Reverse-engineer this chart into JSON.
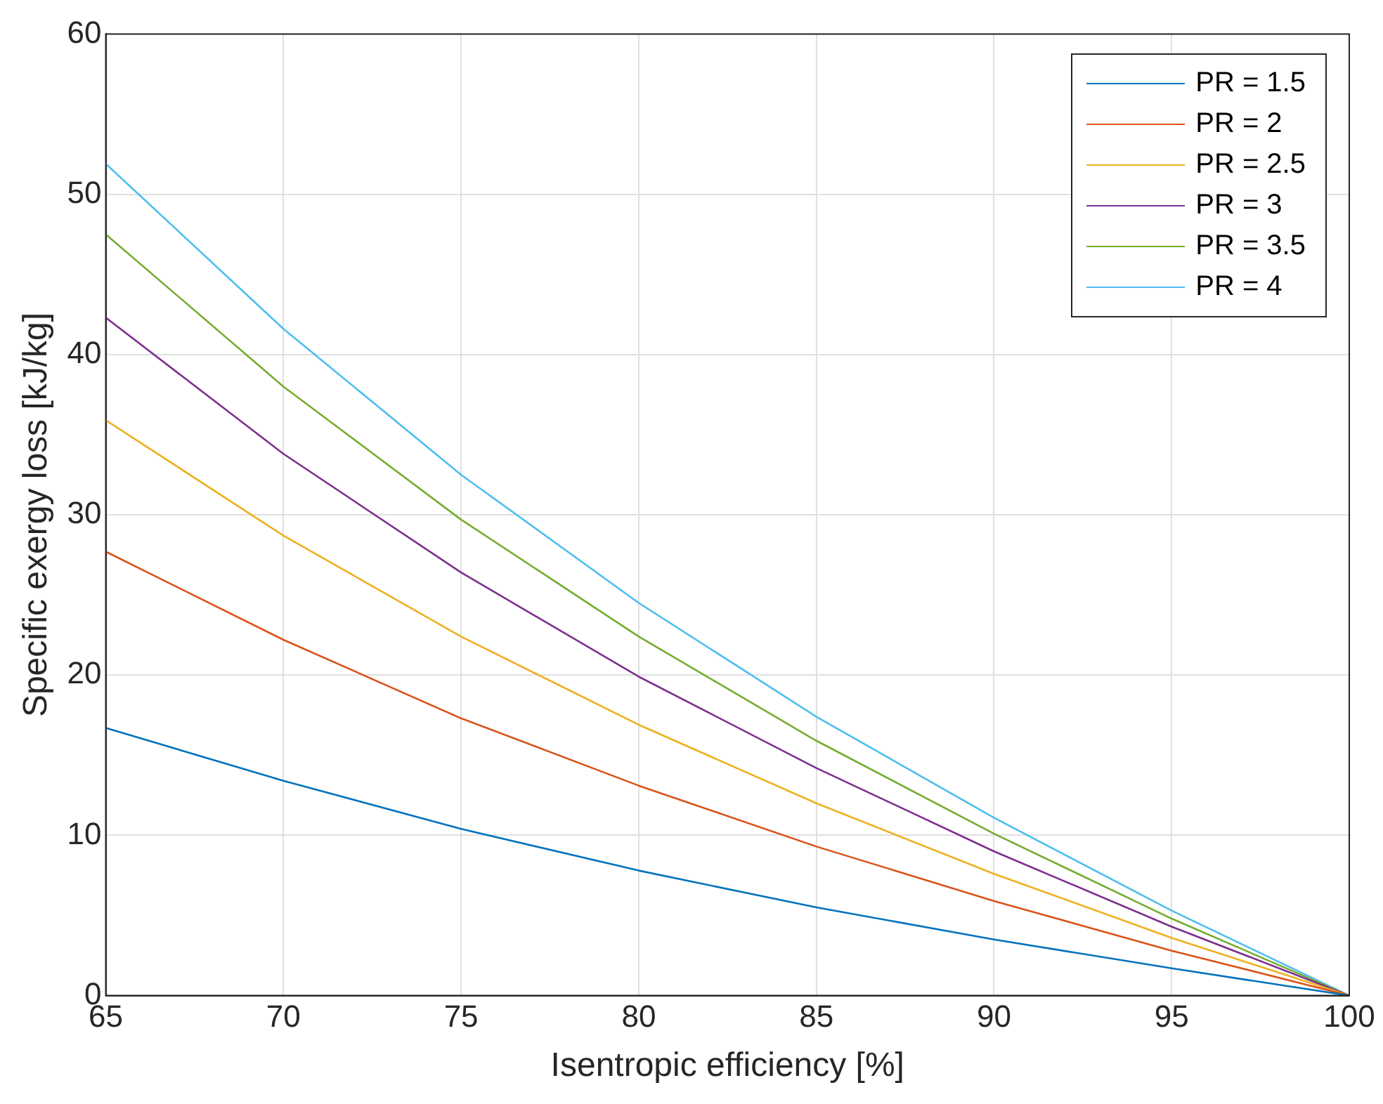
{
  "chart_data": {
    "type": "line",
    "xlabel": "Isentropic efficiency [%]",
    "ylabel": "Specific exergy loss [kJ/kg]",
    "x": [
      65,
      70,
      75,
      80,
      85,
      90,
      95,
      100
    ],
    "series": [
      {
        "name": "PR = 1.5",
        "color": "#0072bd",
        "values": [
          16.7,
          13.4,
          10.4,
          7.8,
          5.5,
          3.5,
          1.7,
          0
        ]
      },
      {
        "name": "PR = 2",
        "color": "#d95319",
        "values": [
          27.7,
          22.2,
          17.3,
          13.1,
          9.3,
          5.9,
          2.8,
          0
        ]
      },
      {
        "name": "PR = 2.5",
        "color": "#edb120",
        "values": [
          35.9,
          28.7,
          22.4,
          16.9,
          12.0,
          7.6,
          3.6,
          0
        ]
      },
      {
        "name": "PR = 3",
        "color": "#7e2f8e",
        "values": [
          42.3,
          33.8,
          26.4,
          19.9,
          14.2,
          9.0,
          4.3,
          0
        ]
      },
      {
        "name": "PR = 3.5",
        "color": "#77ac30",
        "values": [
          47.5,
          38.0,
          29.7,
          22.4,
          15.9,
          10.1,
          4.8,
          0
        ]
      },
      {
        "name": "PR = 4",
        "color": "#4dbeee",
        "values": [
          51.9,
          41.6,
          32.5,
          24.5,
          17.4,
          11.1,
          5.3,
          0
        ]
      }
    ],
    "xlim": [
      65,
      100
    ],
    "xticks": [
      65,
      70,
      75,
      80,
      85,
      90,
      95,
      100
    ],
    "ylim": [
      0,
      60
    ],
    "yticks": [
      0,
      10,
      20,
      30,
      40,
      50,
      60
    ],
    "grid": true,
    "legend": "top right",
    "marker": "none",
    "line_style": "solid"
  }
}
